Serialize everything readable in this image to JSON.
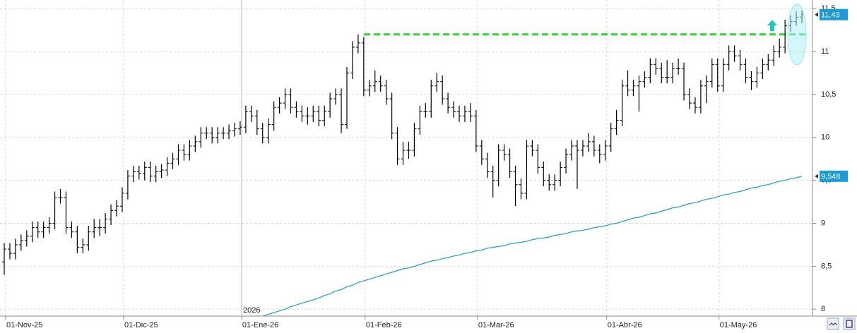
{
  "chart_data": {
    "type": "ohlc",
    "categories": [
      "01-Nov-25",
      null,
      null,
      null,
      null,
      null,
      null,
      null,
      null,
      null,
      null,
      null,
      null,
      null,
      null,
      null,
      null,
      null,
      null,
      null,
      null,
      "01-Dic-25",
      null,
      null,
      null,
      null,
      null,
      null,
      null,
      null,
      null,
      null,
      null,
      null,
      null,
      null,
      null,
      null,
      null,
      null,
      null,
      null,
      "01-Ene-26",
      null,
      null,
      null,
      null,
      null,
      null,
      null,
      null,
      null,
      null,
      null,
      null,
      null,
      null,
      null,
      null,
      null,
      null,
      null,
      null,
      null,
      "01-Feb-26",
      null,
      null,
      null,
      null,
      null,
      null,
      null,
      null,
      null,
      null,
      null,
      null,
      null,
      null,
      null,
      null,
      null,
      null,
      null,
      "01-Mar-26",
      null,
      null,
      null,
      null,
      null,
      null,
      null,
      null,
      null,
      null,
      null,
      null,
      null,
      null,
      null,
      null,
      null,
      null,
      null,
      null,
      null,
      null,
      "01-Abr-26",
      null,
      null,
      null,
      null,
      null,
      null,
      null,
      null,
      null,
      null,
      null,
      null,
      null,
      null,
      null,
      null,
      null,
      null,
      null,
      "01-May-26",
      null,
      null,
      null,
      null,
      null,
      null,
      null,
      null,
      null,
      null,
      null,
      null,
      null,
      null,
      null
    ],
    "open": [
      8.55,
      8.7,
      8.65,
      8.75,
      8.8,
      8.85,
      8.95,
      8.9,
      8.95,
      9.0,
      9.3,
      9.3,
      8.95,
      8.9,
      8.72,
      8.75,
      8.9,
      8.95,
      8.95,
      9.05,
      9.15,
      9.2,
      9.35,
      9.55,
      9.6,
      9.58,
      9.65,
      9.55,
      9.6,
      9.62,
      9.7,
      9.75,
      9.85,
      9.8,
      9.9,
      9.95,
      10.05,
      10.05,
      10.0,
      10.05,
      10.05,
      10.08,
      10.1,
      10.12,
      10.3,
      10.25,
      10.1,
      10.0,
      10.15,
      10.35,
      10.4,
      10.5,
      10.35,
      10.3,
      10.25,
      10.25,
      10.3,
      10.2,
      10.3,
      10.45,
      10.5,
      10.15,
      10.75,
      11.05,
      11.1,
      10.55,
      10.6,
      10.65,
      10.6,
      10.45,
      10.05,
      9.75,
      9.85,
      9.85,
      10.1,
      10.3,
      10.3,
      10.6,
      10.65,
      10.45,
      10.35,
      10.3,
      10.25,
      10.3,
      10.25,
      9.9,
      9.75,
      9.6,
      9.5,
      9.85,
      9.8,
      9.6,
      9.45,
      9.35,
      9.9,
      9.85,
      9.65,
      9.5,
      9.45,
      9.5,
      9.65,
      9.8,
      9.9,
      9.85,
      9.9,
      9.95,
      9.85,
      9.8,
      9.9,
      10.1,
      10.2,
      10.6,
      10.55,
      10.6,
      10.65,
      10.7,
      10.85,
      10.8,
      10.7,
      10.7,
      10.8,
      10.8,
      10.5,
      10.4,
      10.35,
      10.6,
      10.65,
      10.85,
      10.6,
      10.85,
      11.0,
      10.95,
      10.85,
      10.7,
      10.65,
      10.75,
      10.85,
      10.9,
      11.0,
      11.05,
      11.3,
      11.35,
      11.4
    ],
    "high": [
      8.77,
      8.77,
      8.82,
      8.87,
      8.92,
      9.02,
      9.02,
      9.02,
      9.07,
      9.37,
      9.4,
      9.37,
      9.02,
      8.97,
      8.82,
      8.97,
      9.05,
      9.05,
      9.12,
      9.22,
      9.27,
      9.42,
      9.62,
      9.67,
      9.67,
      9.72,
      9.72,
      9.67,
      9.69,
      9.77,
      9.82,
      9.92,
      9.92,
      9.97,
      10.02,
      10.12,
      10.12,
      10.12,
      10.12,
      10.12,
      10.15,
      10.17,
      10.19,
      10.37,
      10.37,
      10.32,
      10.17,
      10.22,
      10.42,
      10.47,
      10.57,
      10.57,
      10.42,
      10.37,
      10.35,
      10.37,
      10.37,
      10.37,
      10.52,
      10.57,
      10.57,
      10.82,
      11.12,
      11.2,
      11.17,
      10.67,
      10.78,
      10.72,
      10.67,
      10.52,
      10.12,
      9.95,
      9.95,
      10.17,
      10.37,
      10.4,
      10.67,
      10.75,
      10.72,
      10.52,
      10.42,
      10.37,
      10.37,
      10.4,
      10.32,
      9.97,
      9.82,
      9.67,
      9.92,
      9.92,
      9.87,
      9.67,
      9.52,
      9.97,
      9.97,
      9.92,
      9.72,
      9.57,
      9.57,
      9.72,
      9.87,
      9.97,
      9.97,
      9.97,
      10.05,
      10.02,
      9.92,
      9.97,
      10.17,
      10.32,
      10.67,
      10.78,
      10.67,
      10.72,
      10.77,
      10.92,
      10.92,
      10.87,
      10.9,
      10.87,
      10.92,
      10.87,
      10.57,
      10.47,
      10.67,
      10.72,
      10.92,
      10.92,
      10.92,
      11.07,
      11.07,
      11.02,
      10.92,
      10.77,
      10.82,
      10.92,
      10.97,
      11.07,
      11.15,
      11.37,
      11.42,
      11.47,
      11.48
    ],
    "low": [
      8.4,
      8.58,
      8.58,
      8.68,
      8.73,
      8.78,
      8.83,
      8.83,
      8.88,
      8.93,
      9.23,
      8.88,
      8.83,
      8.65,
      8.65,
      8.68,
      8.83,
      8.85,
      8.88,
      8.98,
      9.08,
      9.13,
      9.28,
      9.48,
      9.51,
      9.5,
      9.48,
      9.48,
      9.53,
      9.55,
      9.63,
      9.68,
      9.73,
      9.73,
      9.83,
      9.88,
      9.98,
      9.93,
      9.93,
      9.98,
      9.98,
      10.01,
      10.03,
      10.05,
      10.18,
      10.03,
      9.93,
      9.93,
      10.08,
      10.28,
      10.33,
      10.28,
      10.23,
      10.18,
      10.15,
      10.18,
      10.13,
      10.13,
      10.23,
      10.38,
      10.05,
      10.1,
      10.68,
      10.98,
      10.48,
      10.48,
      10.53,
      10.53,
      10.38,
      9.98,
      9.68,
      9.68,
      9.75,
      9.78,
      10.03,
      10.23,
      10.23,
      10.53,
      10.38,
      10.28,
      10.23,
      10.18,
      10.18,
      10.18,
      9.83,
      9.68,
      9.53,
      9.3,
      9.43,
      9.73,
      9.53,
      9.2,
      9.28,
      9.28,
      9.78,
      9.58,
      9.43,
      9.38,
      9.38,
      9.43,
      9.58,
      9.73,
      9.4,
      9.78,
      9.83,
      9.78,
      9.7,
      9.73,
      9.83,
      10.03,
      10.13,
      10.48,
      10.48,
      10.3,
      10.58,
      10.63,
      10.73,
      10.63,
      10.63,
      10.63,
      10.73,
      10.43,
      10.33,
      10.28,
      10.28,
      10.4,
      10.58,
      10.53,
      10.53,
      10.78,
      10.88,
      10.78,
      10.63,
      10.55,
      10.58,
      10.68,
      10.78,
      10.83,
      10.93,
      10.98,
      11.23,
      11.3,
      11.33
    ],
    "close": [
      8.7,
      8.65,
      8.75,
      8.8,
      8.85,
      8.95,
      8.9,
      8.95,
      9.0,
      9.3,
      9.3,
      8.95,
      8.9,
      8.72,
      8.75,
      8.9,
      8.95,
      8.95,
      9.05,
      9.15,
      9.2,
      9.35,
      9.55,
      9.6,
      9.58,
      9.65,
      9.55,
      9.6,
      9.62,
      9.7,
      9.75,
      9.85,
      9.8,
      9.9,
      9.95,
      10.05,
      10.05,
      10.0,
      10.05,
      10.05,
      10.08,
      10.1,
      10.12,
      10.3,
      10.25,
      10.1,
      10.0,
      10.15,
      10.35,
      10.4,
      10.5,
      10.35,
      10.3,
      10.25,
      10.25,
      10.3,
      10.2,
      10.3,
      10.45,
      10.5,
      10.15,
      10.75,
      11.05,
      11.1,
      10.55,
      10.6,
      10.65,
      10.6,
      10.45,
      10.05,
      9.75,
      9.85,
      9.85,
      10.1,
      10.3,
      10.3,
      10.6,
      10.65,
      10.45,
      10.35,
      10.3,
      10.25,
      10.3,
      10.25,
      9.9,
      9.75,
      9.6,
      9.5,
      9.85,
      9.8,
      9.6,
      9.45,
      9.35,
      9.9,
      9.85,
      9.65,
      9.5,
      9.45,
      9.5,
      9.65,
      9.8,
      9.9,
      9.85,
      9.9,
      9.95,
      9.85,
      9.8,
      9.9,
      10.1,
      10.2,
      10.6,
      10.55,
      10.6,
      10.65,
      10.7,
      10.85,
      10.8,
      10.7,
      10.7,
      10.8,
      10.8,
      10.5,
      10.4,
      10.35,
      10.6,
      10.65,
      10.85,
      10.6,
      10.85,
      11.0,
      10.95,
      10.85,
      10.7,
      10.65,
      10.75,
      10.85,
      10.9,
      11.0,
      11.05,
      11.3,
      11.35,
      11.4,
      11.43
    ],
    "close_label": "11,43",
    "color": "#000000",
    "ma": {
      "color": "#1a9ad6",
      "last_label": "9,548",
      "values": [
        null,
        null,
        null,
        null,
        null,
        null,
        null,
        null,
        null,
        null,
        null,
        null,
        null,
        null,
        null,
        null,
        null,
        null,
        null,
        null,
        null,
        null,
        null,
        null,
        null,
        null,
        null,
        null,
        null,
        null,
        null,
        null,
        null,
        null,
        null,
        null,
        null,
        null,
        null,
        null,
        null,
        null,
        null,
        null,
        7.86,
        7.89,
        7.92,
        7.94,
        7.96,
        7.98,
        8.0,
        8.03,
        8.05,
        8.07,
        8.09,
        8.11,
        8.13,
        8.16,
        8.18,
        8.21,
        8.23,
        8.26,
        8.28,
        8.31,
        8.33,
        8.35,
        8.37,
        8.39,
        8.41,
        8.43,
        8.45,
        8.47,
        8.48,
        8.5,
        8.52,
        8.54,
        8.56,
        8.57,
        8.59,
        8.6,
        8.62,
        8.63,
        8.65,
        8.66,
        8.68,
        8.69,
        8.71,
        8.72,
        8.73,
        8.74,
        8.76,
        8.77,
        8.78,
        8.79,
        8.81,
        8.82,
        8.83,
        8.84,
        8.86,
        8.87,
        8.88,
        8.9,
        8.91,
        8.92,
        8.93,
        8.95,
        8.96,
        8.97,
        8.99,
        9.0,
        9.02,
        9.04,
        9.06,
        9.07,
        9.09,
        9.11,
        9.12,
        9.14,
        9.16,
        9.18,
        9.19,
        9.21,
        9.23,
        9.24,
        9.26,
        9.28,
        9.29,
        9.31,
        9.33,
        9.34,
        9.36,
        9.37,
        9.39,
        9.41,
        9.42,
        9.44,
        9.45,
        9.47,
        9.49,
        9.5,
        9.52,
        9.53,
        9.548
      ]
    },
    "resistance": {
      "value": 11.2,
      "color": "#22dd22"
    },
    "year_label": "2026",
    "ylim": [
      7.92,
      11.6
    ],
    "yticks": [
      8,
      {
        "value": 8.5,
        "label": "8,5"
      },
      9,
      {
        "value": 9.5,
        "label": "9,5"
      },
      10,
      {
        "value": 10.5,
        "label": "10,5"
      },
      11,
      {
        "value": 11.5,
        "label": "11,5"
      }
    ],
    "grid": true
  }
}
